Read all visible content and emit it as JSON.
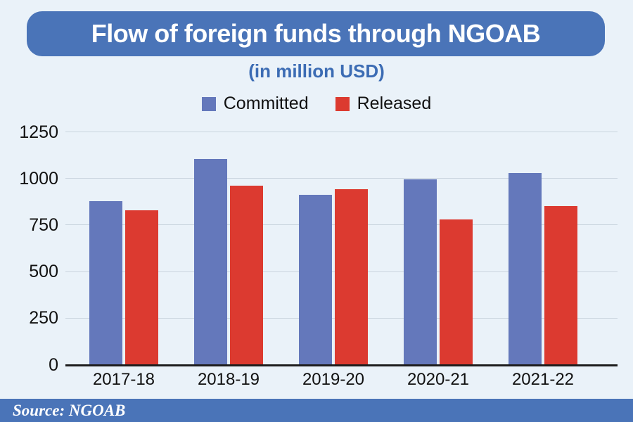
{
  "chart_data": {
    "type": "bar",
    "title": "Flow of foreign funds through NGOAB",
    "subtitle": "(in million USD)",
    "categories": [
      "2017-18",
      "2018-19",
      "2019-20",
      "2020-21",
      "2021-22"
    ],
    "series": [
      {
        "name": "Committed",
        "color": "#6478bb",
        "values": [
          877,
          1104,
          912,
          996,
          1028
        ]
      },
      {
        "name": "Released",
        "color": "#dc3a30",
        "values": [
          830,
          962,
          943,
          779,
          850
        ]
      }
    ],
    "xlabel": "",
    "ylabel": "",
    "ylim": [
      0,
      1250
    ],
    "yticks": [
      0,
      250,
      500,
      750,
      1000,
      1250
    ],
    "grid": true,
    "legend_position": "top"
  },
  "source": {
    "label": "Source: NGOAB"
  },
  "colors": {
    "background": "#eaf2f9",
    "banner_blue": "#4a74b8",
    "subtitle_blue": "#3c6cb4",
    "committed_bar": "#6478bb",
    "released_bar": "#dc3a30",
    "gridline": "#c9d4de",
    "axis_line": "#1d1d1d",
    "tick_text": "#111111",
    "source_bar": "#4a74b8",
    "source_text": "#ffffff"
  }
}
